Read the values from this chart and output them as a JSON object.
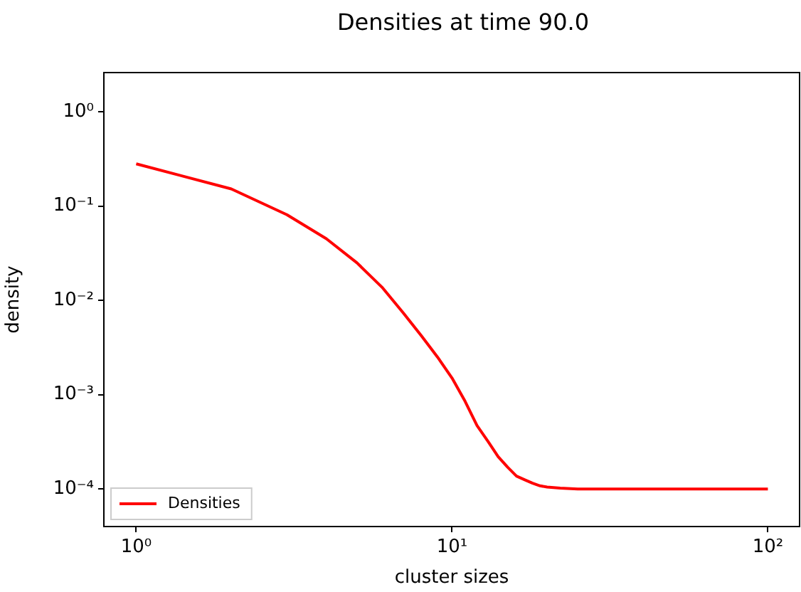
{
  "chart_data": {
    "type": "line",
    "title": "Densities at time 90.0",
    "xlabel": "cluster sizes",
    "ylabel": "density",
    "x": [
      1,
      2,
      3,
      4,
      5,
      6,
      7,
      8,
      9,
      10,
      11,
      12,
      13,
      14,
      15,
      16,
      17,
      18,
      19,
      20,
      22,
      25,
      30,
      40,
      50,
      60,
      70,
      80,
      90,
      100
    ],
    "series": [
      {
        "name": "Densities",
        "color": "#ff0000",
        "values": [
          0.28,
          0.152,
          0.081,
          0.045,
          0.025,
          0.0138,
          0.0074,
          0.0042,
          0.0025,
          0.0015,
          0.00085,
          0.00047,
          0.00032,
          0.00022,
          0.00017,
          0.000137,
          0.000125,
          0.000115,
          0.000108,
          0.000105,
          0.000102,
          0.0001,
          0.0001,
          0.0001,
          0.0001,
          0.0001,
          0.0001,
          0.0001,
          0.0001,
          0.0001
        ]
      }
    ],
    "log": "xy",
    "xlim": [
      0.79,
      126
    ],
    "ylim": [
      4e-05,
      2.6
    ],
    "xticks": [
      {
        "value": 1,
        "label": "10⁰"
      },
      {
        "value": 10,
        "label": "10¹"
      },
      {
        "value": 100,
        "label": "10²"
      }
    ],
    "yticks": [
      {
        "value": 0.0001,
        "label": "10⁻⁴"
      },
      {
        "value": 0.001,
        "label": "10⁻³"
      },
      {
        "value": 0.01,
        "label": "10⁻²"
      },
      {
        "value": 0.1,
        "label": "10⁻¹"
      },
      {
        "value": 1,
        "label": "10⁰"
      }
    ],
    "grid": false,
    "legend": "lower left",
    "marker": "none",
    "line_style": "solid"
  }
}
